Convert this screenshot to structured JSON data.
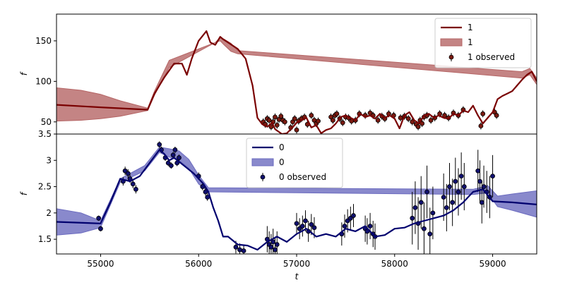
{
  "chart_data": [
    {
      "type": "line",
      "xlabel": "",
      "ylabel": "f",
      "xlim": [
        54550,
        59450
      ],
      "ylim": [
        35,
        183
      ],
      "yticks": [
        50,
        100,
        150
      ],
      "grid": false,
      "legend": {
        "placement": "upper-right",
        "entries": [
          {
            "kind": "line",
            "label": "1"
          },
          {
            "kind": "band",
            "label": "1"
          },
          {
            "kind": "marker",
            "label": "1 observed"
          }
        ]
      },
      "colors": {
        "line": "#7a0000",
        "band": "#b56565",
        "marker": "#7a1a10"
      },
      "series": [
        {
          "name": "1",
          "x": [
            54550,
            55000,
            55480,
            55550,
            55650,
            55750,
            55830,
            55880,
            55930,
            56000,
            56080,
            56120,
            56170,
            56220,
            56250,
            56300,
            56400,
            56480,
            56550,
            56600,
            56650,
            56700,
            56750,
            56780,
            56850,
            56900,
            56950,
            57000,
            57050,
            57100,
            57150,
            57200,
            57250,
            57300,
            57350,
            57400,
            57450,
            57500,
            57550,
            57600,
            57650,
            57700,
            57750,
            57800,
            57850,
            57900,
            57950,
            58000,
            58050,
            58100,
            58150,
            58200,
            58250,
            58300,
            58350,
            58400,
            58450,
            58500,
            58550,
            58600,
            58650,
            58700,
            58750,
            58800,
            58850,
            58900,
            58950,
            59000,
            59050,
            59100,
            59150,
            59200,
            59250,
            59300,
            59350,
            59400,
            59450
          ],
          "y": [
            71,
            68,
            65,
            85,
            105,
            122,
            122,
            108,
            128,
            150,
            162,
            148,
            145,
            155,
            152,
            148,
            140,
            128,
            95,
            55,
            47,
            44,
            49,
            41,
            35,
            36,
            42,
            49,
            52,
            55,
            43,
            46,
            36,
            40,
            42,
            48,
            56,
            58,
            55,
            52,
            60,
            56,
            58,
            54,
            60,
            55,
            58,
            54,
            42,
            58,
            62,
            52,
            48,
            58,
            60,
            55,
            58,
            55,
            54,
            60,
            58,
            64,
            62,
            70,
            58,
            48,
            55,
            62,
            78,
            82,
            85,
            88,
            95,
            102,
            108,
            112,
            100
          ],
          "band_x": [
            54550,
            54800,
            55000,
            55200,
            55480,
            55550,
            55700,
            56170,
            56220,
            56260,
            56330,
            56400,
            59300,
            59380,
            59450
          ],
          "band_lower": [
            51,
            52,
            54,
            57,
            64,
            83,
            117,
            148,
            150,
            145,
            137,
            134,
            104,
            108,
            96
          ],
          "band_upper": [
            92,
            89,
            84,
            76,
            67,
            88,
            126,
            148,
            154,
            152,
            147,
            138,
            112,
            116,
            104
          ]
        }
      ],
      "observed": {
        "name": "1 observed",
        "x": [
          56660,
          56680,
          56700,
          56720,
          56740,
          56760,
          56780,
          56800,
          56820,
          56840,
          56860,
          56880,
          56940,
          56960,
          56980,
          57000,
          57020,
          57050,
          57080,
          57110,
          57150,
          57180,
          57200,
          57220,
          57350,
          57370,
          57390,
          57410,
          57440,
          57470,
          57500,
          57530,
          57560,
          57600,
          57640,
          57700,
          57750,
          57780,
          57830,
          57870,
          57900,
          57940,
          57990,
          58060,
          58100,
          58140,
          58180,
          58220,
          58240,
          58260,
          58280,
          58300,
          58330,
          58370,
          58410,
          58460,
          58510,
          58550,
          58600,
          58650,
          58700,
          58880,
          58900,
          59020,
          59040
        ],
        "y": [
          50,
          47,
          54,
          52,
          44,
          50,
          56,
          46,
          53,
          57,
          52,
          50,
          43,
          50,
          54,
          40,
          51,
          54,
          56,
          47,
          58,
          52,
          48,
          51,
          56,
          52,
          58,
          60,
          54,
          49,
          56,
          55,
          51,
          52,
          60,
          58,
          61,
          58,
          52,
          57,
          54,
          60,
          58,
          55,
          57,
          54,
          50,
          47,
          44,
          52,
          48,
          56,
          58,
          52,
          55,
          60,
          58,
          55,
          61,
          58,
          65,
          45,
          60,
          62,
          58
        ]
      }
    },
    {
      "type": "line",
      "xlabel": "t",
      "ylabel": "f",
      "xlim": [
        54550,
        59450
      ],
      "ylim": [
        1.22,
        3.5
      ],
      "xticks": [
        55000,
        56000,
        57000,
        58000,
        59000
      ],
      "yticks": [
        1.5,
        2.0,
        2.5,
        3.0,
        3.5
      ],
      "grid": false,
      "legend": {
        "placement": "upper-center",
        "entries": [
          {
            "kind": "line",
            "label": "0"
          },
          {
            "kind": "band",
            "label": "0"
          },
          {
            "kind": "marker",
            "label": "0 observed"
          }
        ]
      },
      "colors": {
        "line": "#00006e",
        "band": "#6b6bbf",
        "marker": "#10106e"
      },
      "series": [
        {
          "name": "0",
          "x": [
            54550,
            55000,
            55100,
            55200,
            55300,
            55400,
            55500,
            55600,
            55650,
            55700,
            55750,
            55850,
            55950,
            56050,
            56100,
            56150,
            56200,
            56250,
            56300,
            56400,
            56500,
            56600,
            56700,
            56800,
            56900,
            57000,
            57100,
            57200,
            57300,
            57400,
            57500,
            57600,
            57700,
            57800,
            57900,
            58000,
            58100,
            58200,
            58300,
            58400,
            58500,
            58600,
            58700,
            58800,
            58900,
            59000,
            59200,
            59450
          ],
          "y": [
            1.83,
            1.8,
            2.2,
            2.65,
            2.6,
            2.7,
            2.95,
            3.2,
            3.12,
            3.0,
            3.05,
            2.9,
            2.75,
            2.55,
            2.4,
            2.1,
            1.85,
            1.55,
            1.55,
            1.4,
            1.38,
            1.3,
            1.45,
            1.55,
            1.45,
            1.6,
            1.7,
            1.55,
            1.6,
            1.55,
            1.7,
            1.65,
            1.75,
            1.55,
            1.58,
            1.7,
            1.72,
            1.8,
            1.85,
            1.9,
            1.95,
            2.05,
            2.2,
            2.4,
            2.45,
            2.22,
            2.2,
            2.16
          ],
          "band_x": [
            54550,
            54800,
            55000,
            55200,
            55450,
            55600,
            55700,
            55800,
            55900,
            56000,
            56100,
            58800,
            58950,
            59050,
            59200,
            59450
          ],
          "band_lower": [
            1.58,
            1.62,
            1.72,
            2.58,
            2.8,
            3.15,
            3.06,
            3.0,
            2.85,
            2.55,
            2.4,
            2.35,
            2.38,
            2.12,
            2.05,
            1.92
          ],
          "band_upper": [
            2.08,
            2.0,
            1.85,
            2.65,
            2.9,
            3.25,
            3.22,
            3.18,
            3.02,
            2.72,
            2.48,
            2.45,
            2.52,
            2.32,
            2.36,
            2.42
          ]
        }
      ],
      "observed": {
        "name": "0 observed",
        "x": [
          54980,
          55000,
          55230,
          55250,
          55280,
          55300,
          55330,
          55360,
          55600,
          55620,
          55660,
          55690,
          55720,
          55740,
          55760,
          55780,
          55800,
          56000,
          56040,
          56070,
          56090,
          56380,
          56420,
          56460,
          56700,
          56720,
          56740,
          56760,
          56780,
          56800,
          57000,
          57030,
          57060,
          57090,
          57120,
          57150,
          57180,
          57460,
          57490,
          57520,
          57550,
          57580,
          57700,
          57720,
          57750,
          57780,
          57800,
          58180,
          58210,
          58240,
          58270,
          58300,
          58330,
          58360,
          58390,
          58500,
          58530,
          58560,
          58590,
          58620,
          58650,
          58680,
          58710,
          58850,
          58870,
          58890,
          58910,
          58940,
          58970,
          59000
        ],
        "y": [
          1.9,
          1.7,
          2.6,
          2.8,
          2.75,
          2.65,
          2.55,
          2.45,
          3.3,
          3.2,
          3.05,
          2.95,
          2.9,
          3.1,
          3.2,
          2.95,
          3.05,
          2.7,
          2.5,
          2.4,
          2.3,
          1.35,
          1.3,
          1.28,
          1.5,
          1.4,
          1.35,
          1.45,
          1.3,
          1.4,
          1.8,
          1.7,
          1.75,
          1.85,
          1.65,
          1.78,
          1.72,
          1.6,
          1.75,
          1.85,
          1.9,
          1.95,
          1.7,
          1.65,
          1.75,
          1.6,
          1.55,
          1.9,
          2.1,
          1.8,
          2.2,
          1.7,
          2.4,
          1.6,
          2.0,
          2.3,
          2.1,
          2.5,
          2.2,
          2.6,
          2.4,
          2.7,
          2.5,
          2.8,
          2.6,
          2.2,
          2.5,
          2.4,
          2.3,
          2.7
        ],
        "yerr": [
          0.05,
          0.05,
          0.08,
          0.08,
          0.08,
          0.08,
          0.08,
          0.08,
          0.06,
          0.06,
          0.06,
          0.06,
          0.06,
          0.06,
          0.06,
          0.06,
          0.06,
          0.07,
          0.07,
          0.07,
          0.07,
          0.12,
          0.12,
          0.12,
          0.25,
          0.25,
          0.25,
          0.25,
          0.25,
          0.25,
          0.2,
          0.2,
          0.2,
          0.2,
          0.2,
          0.2,
          0.2,
          0.22,
          0.22,
          0.22,
          0.22,
          0.22,
          0.25,
          0.25,
          0.25,
          0.25,
          0.25,
          0.5,
          0.5,
          0.5,
          0.5,
          0.5,
          0.5,
          0.5,
          0.5,
          0.45,
          0.45,
          0.45,
          0.45,
          0.45,
          0.45,
          0.45,
          0.45,
          0.4,
          0.4,
          0.4,
          0.4,
          0.4,
          0.4,
          0.4
        ]
      }
    }
  ]
}
